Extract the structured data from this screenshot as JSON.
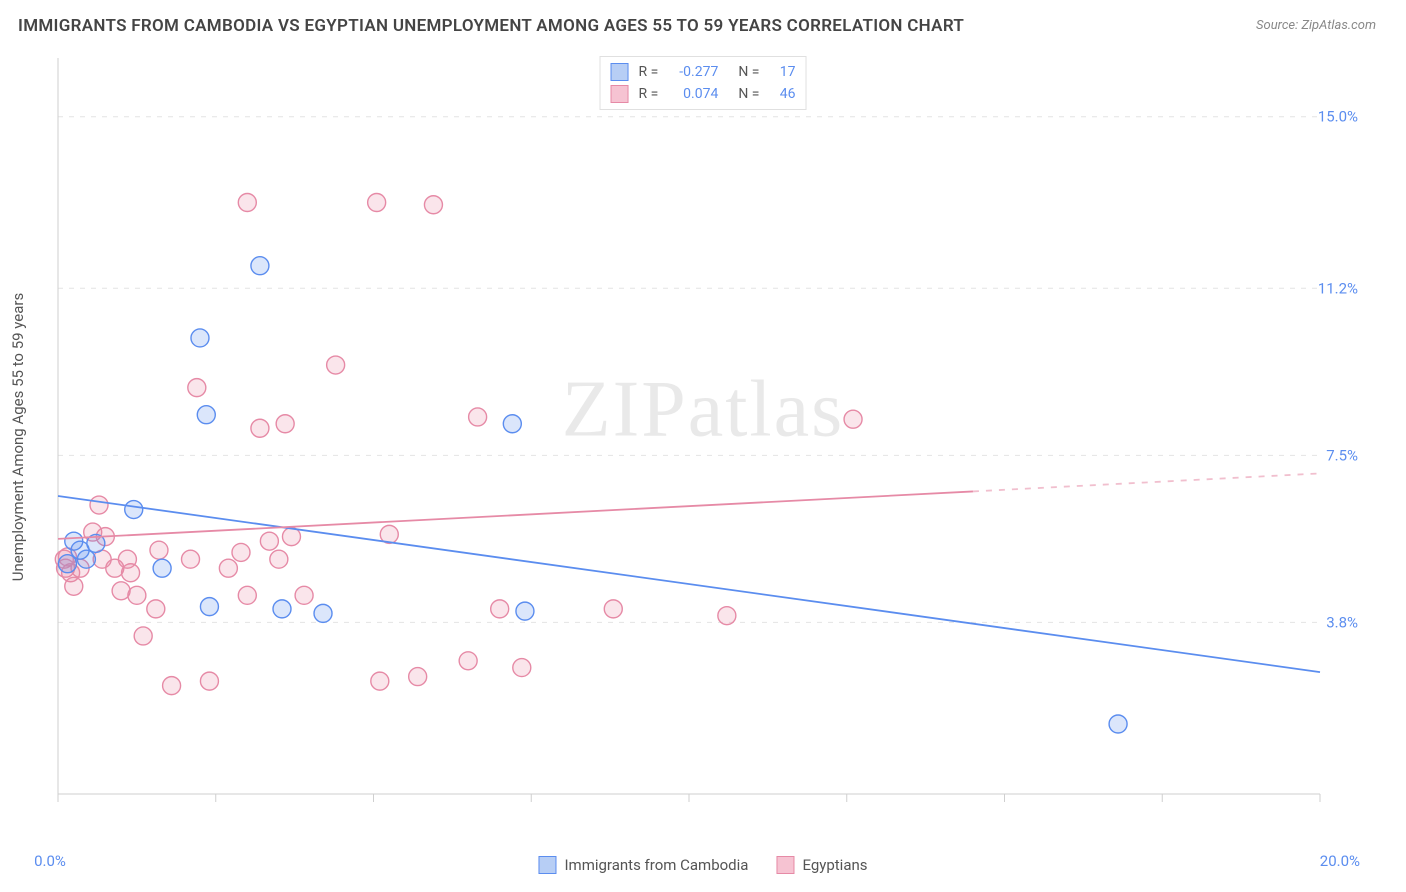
{
  "title": "IMMIGRANTS FROM CAMBODIA VS EGYPTIAN UNEMPLOYMENT AMONG AGES 55 TO 59 YEARS CORRELATION CHART",
  "source_prefix": "Source: ",
  "source_name": "ZipAtlas.com",
  "y_axis_label": "Unemployment Among Ages 55 to 59 years",
  "watermark_a": "ZIP",
  "watermark_b": "atlas",
  "chart": {
    "type": "scatter-with-regression",
    "xlim": [
      0.0,
      20.0
    ],
    "ylim": [
      0.0,
      16.3
    ],
    "x_origin_label": "0.0%",
    "x_max_label": "20.0%",
    "y_gridlines": [
      3.8,
      7.5,
      11.2,
      15.0
    ],
    "y_grid_labels": [
      "3.8%",
      "7.5%",
      "11.2%",
      "15.0%"
    ],
    "x_ticks": [
      0.0,
      2.5,
      5.0,
      7.5,
      10.0,
      12.5,
      15.0,
      17.5,
      20.0
    ],
    "grid_color": "#e4e4e4",
    "axis_color": "#cfcfcf",
    "background_color": "#ffffff",
    "label_color": "#5b8def",
    "marker_radius": 9,
    "marker_fill_opacity": 0.22,
    "marker_stroke_width": 1.4,
    "line_width": 1.8,
    "series": [
      {
        "id": "cambodia",
        "name": "Immigrants from Cambodia",
        "color": "#5b8def",
        "fill": "#b7cef5",
        "R": "-0.277",
        "N": "17",
        "regression": {
          "x1": 0.0,
          "y1": 6.6,
          "x2": 20.0,
          "y2": 2.7,
          "dash_from_x": null
        },
        "points": [
          [
            0.15,
            5.1
          ],
          [
            0.25,
            5.6
          ],
          [
            0.35,
            5.4
          ],
          [
            0.45,
            5.2
          ],
          [
            0.6,
            5.55
          ],
          [
            1.2,
            6.3
          ],
          [
            1.65,
            5.0
          ],
          [
            2.25,
            10.1
          ],
          [
            2.35,
            8.4
          ],
          [
            2.4,
            4.15
          ],
          [
            3.2,
            11.7
          ],
          [
            3.55,
            4.1
          ],
          [
            4.2,
            4.0
          ],
          [
            7.2,
            8.2
          ],
          [
            7.4,
            4.05
          ],
          [
            16.8,
            1.55
          ]
        ]
      },
      {
        "id": "egyptians",
        "name": "Egyptians",
        "color": "#e68aa6",
        "fill": "#f6c3d2",
        "R": "0.074",
        "N": "46",
        "regression": {
          "x1": 0.0,
          "y1": 5.65,
          "x2": 20.0,
          "y2": 7.1,
          "dash_from_x": 14.5
        },
        "points": [
          [
            0.1,
            5.2
          ],
          [
            0.12,
            5.0
          ],
          [
            0.15,
            5.25
          ],
          [
            0.2,
            4.9
          ],
          [
            0.25,
            4.6
          ],
          [
            0.35,
            5.0
          ],
          [
            0.55,
            5.8
          ],
          [
            0.65,
            6.4
          ],
          [
            0.7,
            5.2
          ],
          [
            0.75,
            5.7
          ],
          [
            0.9,
            5.0
          ],
          [
            1.0,
            4.5
          ],
          [
            1.1,
            5.2
          ],
          [
            1.15,
            4.9
          ],
          [
            1.25,
            4.4
          ],
          [
            1.35,
            3.5
          ],
          [
            1.55,
            4.1
          ],
          [
            1.6,
            5.4
          ],
          [
            1.8,
            2.4
          ],
          [
            2.1,
            5.2
          ],
          [
            2.2,
            9.0
          ],
          [
            2.4,
            2.5
          ],
          [
            2.7,
            5.0
          ],
          [
            2.9,
            5.35
          ],
          [
            3.0,
            4.4
          ],
          [
            3.0,
            13.1
          ],
          [
            3.2,
            8.1
          ],
          [
            3.35,
            5.6
          ],
          [
            3.5,
            5.2
          ],
          [
            3.6,
            8.2
          ],
          [
            3.7,
            5.7
          ],
          [
            3.9,
            4.4
          ],
          [
            4.4,
            9.5
          ],
          [
            5.1,
            2.5
          ],
          [
            5.05,
            13.1
          ],
          [
            5.25,
            5.75
          ],
          [
            5.7,
            2.6
          ],
          [
            5.95,
            13.05
          ],
          [
            6.5,
            2.95
          ],
          [
            6.65,
            8.35
          ],
          [
            7.0,
            4.1
          ],
          [
            7.35,
            2.8
          ],
          [
            8.8,
            4.1
          ],
          [
            10.6,
            3.95
          ],
          [
            12.6,
            8.3
          ]
        ]
      }
    ]
  },
  "legend_top": {
    "R_label": "R =",
    "N_label": "N ="
  }
}
